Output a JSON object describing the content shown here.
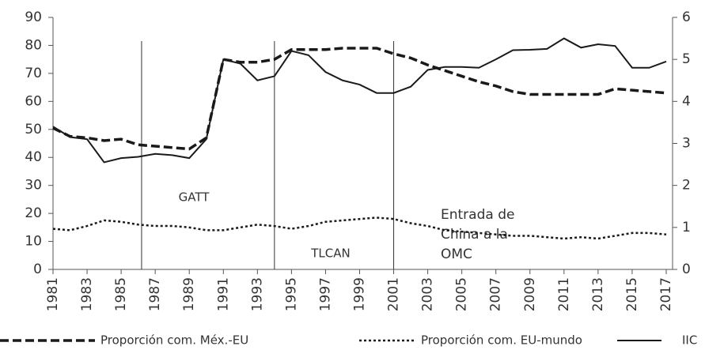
{
  "chart_data": {
    "type": "line",
    "x": [
      1981,
      1982,
      1983,
      1984,
      1985,
      1986,
      1987,
      1988,
      1989,
      1990,
      1991,
      1992,
      1993,
      1994,
      1995,
      1996,
      1997,
      1998,
      1999,
      2000,
      2001,
      2002,
      2003,
      2004,
      2005,
      2006,
      2007,
      2008,
      2009,
      2010,
      2011,
      2012,
      2013,
      2014,
      2015,
      2016,
      2017
    ],
    "xlim": [
      1981,
      2017
    ],
    "xticks": [
      1981,
      1983,
      1985,
      1987,
      1989,
      1991,
      1993,
      1995,
      1997,
      1999,
      2001,
      2003,
      2005,
      2007,
      2009,
      2011,
      2013,
      2015,
      2017
    ],
    "ylim": [
      0,
      90
    ],
    "yticks": [
      0,
      10,
      20,
      30,
      40,
      50,
      60,
      70,
      80,
      90
    ],
    "y2lim": [
      0,
      6
    ],
    "y2ticks": [
      0,
      1,
      2,
      3,
      4,
      5,
      6
    ],
    "series": [
      {
        "name": "Proporción com. Méx.-EU",
        "color": "#1a1a1a",
        "style": "dashed",
        "values": [
          50.5,
          47.5,
          47,
          46,
          46.5,
          44.5,
          44,
          43.5,
          43,
          47,
          75,
          74,
          74,
          75,
          78.5,
          78.5,
          78.5,
          79,
          79,
          79,
          77,
          75.5,
          73,
          71,
          69,
          67,
          65.5,
          63.5,
          62.5,
          62.5,
          62.5,
          62.5,
          62.5,
          64.5,
          64,
          63.5,
          63
        ]
      },
      {
        "name": "Proporción com. EU-mundo",
        "color": "#1a1a1a",
        "style": "dotted",
        "values": [
          14.5,
          14,
          15.5,
          17.5,
          17,
          16,
          15.5,
          15.5,
          15,
          14,
          14,
          15,
          16,
          15.5,
          14.5,
          15.5,
          17,
          17.5,
          18,
          18.5,
          18,
          16.5,
          15.5,
          14,
          13.5,
          13,
          12.5,
          12,
          12,
          11.5,
          11,
          11.5,
          11,
          12,
          13,
          13,
          12.5
        ]
      },
      {
        "name": "IIC",
        "color": "#1a1a1a",
        "style": "solid",
        "axis": "y2",
        "values": [
          3.4,
          3.15,
          3.1,
          2.55,
          2.65,
          2.68,
          2.75,
          2.72,
          2.65,
          3.1,
          5.0,
          4.9,
          4.5,
          4.6,
          5.2,
          5.1,
          4.7,
          4.5,
          4.4,
          4.2,
          4.2,
          4.35,
          4.75,
          4.82,
          4.82,
          4.8,
          5.0,
          5.22,
          5.23,
          5.25,
          5.5,
          5.28,
          5.36,
          5.32,
          4.8,
          4.8,
          4.95
        ]
      }
    ],
    "events": [
      {
        "x": 1986.2,
        "lines": [
          "GATT"
        ]
      },
      {
        "x": 1994,
        "lines": [
          "TLCAN"
        ]
      },
      {
        "x": 2001,
        "lines": [
          "Entrada de",
          "China a la",
          "OMC"
        ]
      }
    ]
  }
}
